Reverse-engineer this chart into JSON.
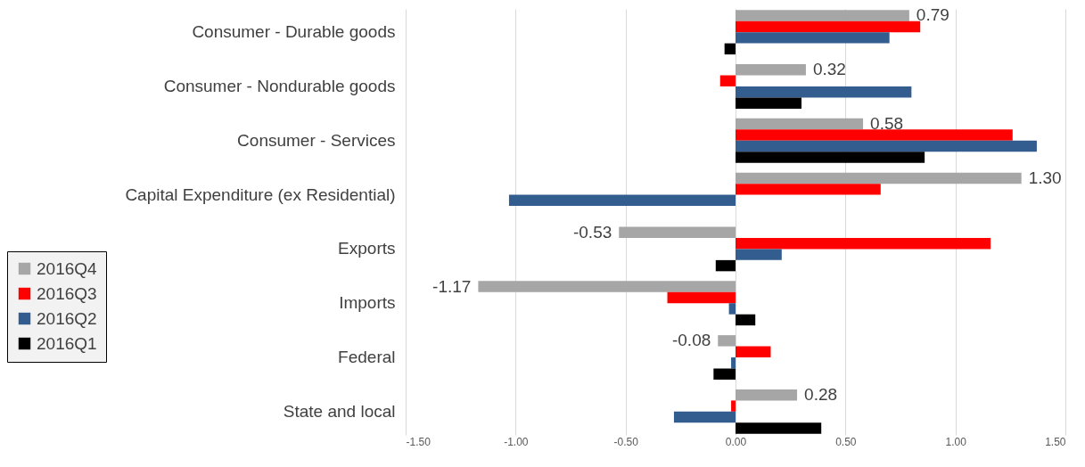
{
  "chart_data": {
    "type": "bar",
    "orientation": "horizontal",
    "categories": [
      "Consumer - Durable goods",
      "Consumer - Nondurable goods",
      "Consumer - Services",
      "Capital Expenditure (ex Residential)",
      "Exports",
      "Imports",
      "Federal",
      "State and local"
    ],
    "series": [
      {
        "name": "2016Q4",
        "color": "#a6a6a6",
        "values": [
          0.79,
          0.32,
          0.58,
          1.3,
          -0.53,
          -1.17,
          -0.08,
          0.28
        ],
        "value_labels": [
          "0.79",
          "0.32",
          "0.58",
          "1.30",
          "-0.53",
          "-1.17",
          "-0.08",
          "0.28"
        ]
      },
      {
        "name": "2016Q3",
        "color": "#ff0000",
        "values": [
          0.84,
          -0.07,
          1.26,
          0.66,
          1.16,
          -0.31,
          0.16,
          -0.02
        ]
      },
      {
        "name": "2016Q2",
        "color": "#335c8f",
        "values": [
          0.7,
          0.8,
          1.37,
          -1.03,
          0.21,
          -0.03,
          -0.02,
          -0.28
        ]
      },
      {
        "name": "2016Q1",
        "color": "#000000",
        "values": [
          -0.05,
          0.3,
          0.86,
          0,
          -0.09,
          0.09,
          -0.1,
          0.39
        ]
      }
    ],
    "xlim": [
      -1.5,
      1.5
    ],
    "xticks": [
      {
        "value": -1.5,
        "label": "-1.50"
      },
      {
        "value": -1,
        "label": "-1.00"
      },
      {
        "value": -0.5,
        "label": "-0.50"
      },
      {
        "value": 0,
        "label": "0.00"
      },
      {
        "value": 0.5,
        "label": "0.50"
      },
      {
        "value": 1,
        "label": "1.00"
      },
      {
        "value": 1.5,
        "label": "1.50"
      }
    ],
    "grid": "x",
    "legend": "left"
  }
}
